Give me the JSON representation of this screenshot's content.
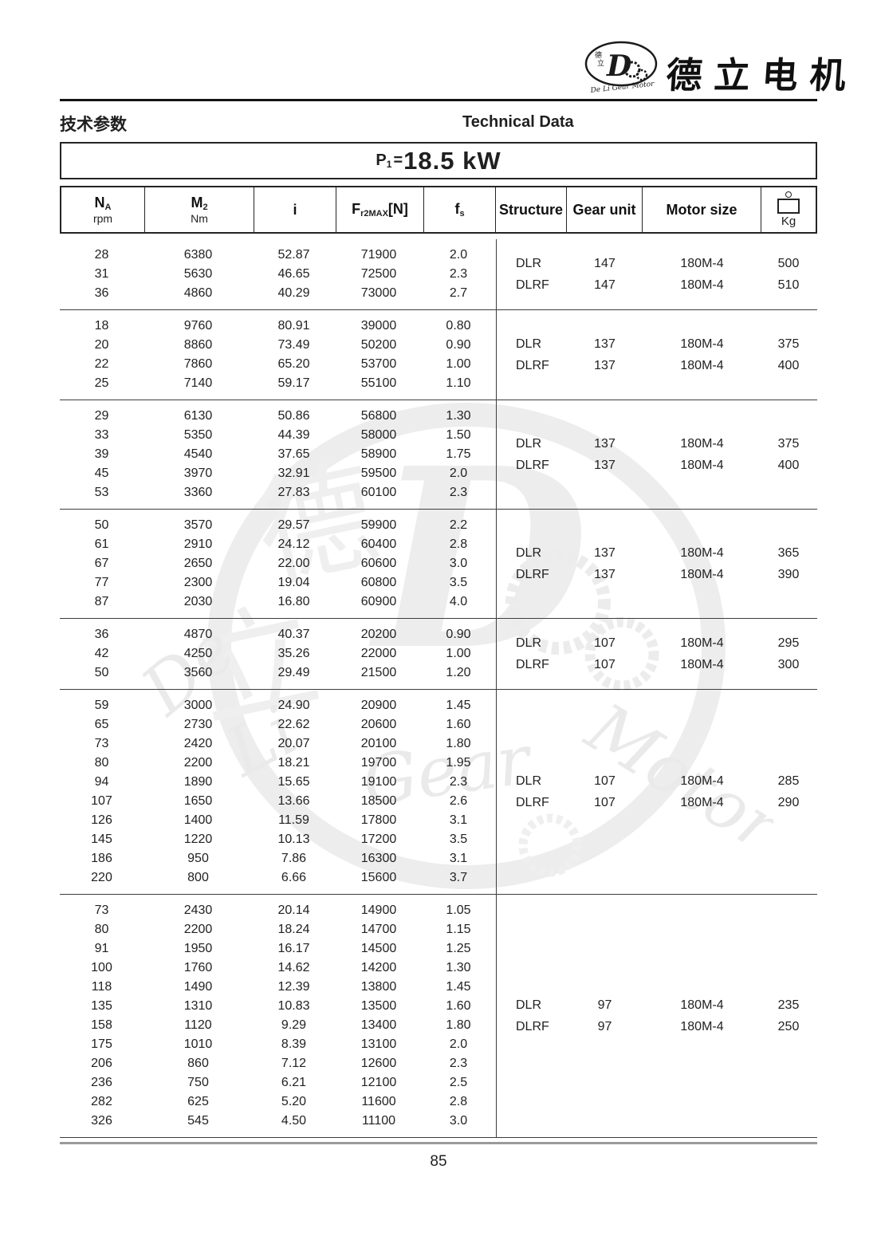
{
  "brand": {
    "name_cn": "德立电机",
    "emblem_d": "D",
    "emblem_cn1": "德",
    "emblem_cn2": "立",
    "emblem_caption": "De Li Gear Motor"
  },
  "titles": {
    "cn": "技术参数",
    "en": "Technical Data"
  },
  "power": {
    "p": "P",
    "sub": "1",
    "eq": "=",
    "value": "18.5 kW"
  },
  "watermark": {
    "d": "D",
    "cn1": "德",
    "cn2": "立",
    "w0": "De",
    "w1": "Li",
    "w2": "Gear",
    "w3": "Motor"
  },
  "footer": {
    "page_number": "85"
  },
  "table": {
    "headers": {
      "na_main": "N",
      "na_sub": "A",
      "na_unit": "rpm",
      "m_main": "M",
      "m_sub": "2",
      "m_unit": "Nm",
      "i": "i",
      "f_main": "F",
      "f_sub": "r2MAX",
      "f_tail": "[N]",
      "fs_main": "f",
      "fs_sub": "s",
      "structure": "Structure",
      "gear_unit": "Gear unit",
      "motor_size": "Motor size",
      "kg": "Kg"
    },
    "groups": [
      {
        "rows": [
          [
            "28",
            "6380",
            "52.87",
            "71900",
            "2.0"
          ],
          [
            "31",
            "5630",
            "46.65",
            "72500",
            "2.3"
          ],
          [
            "36",
            "4860",
            "40.29",
            "73000",
            "2.7"
          ]
        ],
        "info": [
          [
            "DLR",
            "147",
            "180M-4",
            "500"
          ],
          [
            "DLRF",
            "147",
            "180M-4",
            "510"
          ]
        ]
      },
      {
        "rows": [
          [
            "18",
            "9760",
            "80.91",
            "39000",
            "0.80"
          ],
          [
            "20",
            "8860",
            "73.49",
            "50200",
            "0.90"
          ],
          [
            "22",
            "7860",
            "65.20",
            "53700",
            "1.00"
          ],
          [
            "25",
            "7140",
            "59.17",
            "55100",
            "1.10"
          ]
        ],
        "info": [
          [
            "DLR",
            "137",
            "180M-4",
            "375"
          ],
          [
            "DLRF",
            "137",
            "180M-4",
            "400"
          ]
        ]
      },
      {
        "rows": [
          [
            "29",
            "6130",
            "50.86",
            "56800",
            "1.30"
          ],
          [
            "33",
            "5350",
            "44.39",
            "58000",
            "1.50"
          ],
          [
            "39",
            "4540",
            "37.65",
            "58900",
            "1.75"
          ],
          [
            "45",
            "3970",
            "32.91",
            "59500",
            "2.0"
          ],
          [
            "53",
            "3360",
            "27.83",
            "60100",
            "2.3"
          ]
        ],
        "info": [
          [
            "DLR",
            "137",
            "180M-4",
            "375"
          ],
          [
            "DLRF",
            "137",
            "180M-4",
            "400"
          ]
        ]
      },
      {
        "rows": [
          [
            "50",
            "3570",
            "29.57",
            "59900",
            "2.2"
          ],
          [
            "61",
            "2910",
            "24.12",
            "60400",
            "2.8"
          ],
          [
            "67",
            "2650",
            "22.00",
            "60600",
            "3.0"
          ],
          [
            "77",
            "2300",
            "19.04",
            "60800",
            "3.5"
          ],
          [
            "87",
            "2030",
            "16.80",
            "60900",
            "4.0"
          ]
        ],
        "info": [
          [
            "DLR",
            "137",
            "180M-4",
            "365"
          ],
          [
            "DLRF",
            "137",
            "180M-4",
            "390"
          ]
        ]
      },
      {
        "rows": [
          [
            "36",
            "4870",
            "40.37",
            "20200",
            "0.90"
          ],
          [
            "42",
            "4250",
            "35.26",
            "22000",
            "1.00"
          ],
          [
            "50",
            "3560",
            "29.49",
            "21500",
            "1.20"
          ]
        ],
        "info": [
          [
            "DLR",
            "107",
            "180M-4",
            "295"
          ],
          [
            "DLRF",
            "107",
            "180M-4",
            "300"
          ]
        ]
      },
      {
        "rows": [
          [
            "59",
            "3000",
            "24.90",
            "20900",
            "1.45"
          ],
          [
            "65",
            "2730",
            "22.62",
            "20600",
            "1.60"
          ],
          [
            "73",
            "2420",
            "20.07",
            "20100",
            "1.80"
          ],
          [
            "80",
            "2200",
            "18.21",
            "19700",
            "1.95"
          ],
          [
            "94",
            "1890",
            "15.65",
            "19100",
            "2.3"
          ],
          [
            "107",
            "1650",
            "13.66",
            "18500",
            "2.6"
          ],
          [
            "126",
            "1400",
            "11.59",
            "17800",
            "3.1"
          ],
          [
            "145",
            "1220",
            "10.13",
            "17200",
            "3.5"
          ],
          [
            "186",
            "950",
            "7.86",
            "16300",
            "3.1"
          ],
          [
            "220",
            "800",
            "6.66",
            "15600",
            "3.7"
          ]
        ],
        "info": [
          [
            "DLR",
            "107",
            "180M-4",
            "285"
          ],
          [
            "DLRF",
            "107",
            "180M-4",
            "290"
          ]
        ]
      },
      {
        "rows": [
          [
            "73",
            "2430",
            "20.14",
            "14900",
            "1.05"
          ],
          [
            "80",
            "2200",
            "18.24",
            "14700",
            "1.15"
          ],
          [
            "91",
            "1950",
            "16.17",
            "14500",
            "1.25"
          ],
          [
            "100",
            "1760",
            "14.62",
            "14200",
            "1.30"
          ],
          [
            "118",
            "1490",
            "12.39",
            "13800",
            "1.45"
          ],
          [
            "135",
            "1310",
            "10.83",
            "13500",
            "1.60"
          ],
          [
            "158",
            "1120",
            "9.29",
            "13400",
            "1.80"
          ],
          [
            "175",
            "1010",
            "8.39",
            "13100",
            "2.0"
          ],
          [
            "206",
            "860",
            "7.12",
            "12600",
            "2.3"
          ],
          [
            "236",
            "750",
            "6.21",
            "12100",
            "2.5"
          ],
          [
            "282",
            "625",
            "5.20",
            "11600",
            "2.8"
          ],
          [
            "326",
            "545",
            "4.50",
            "11100",
            "3.0"
          ]
        ],
        "info": [
          [
            "DLR",
            "97",
            "180M-4",
            "235"
          ],
          [
            "DLRF",
            "97",
            "180M-4",
            "250"
          ]
        ]
      }
    ]
  }
}
